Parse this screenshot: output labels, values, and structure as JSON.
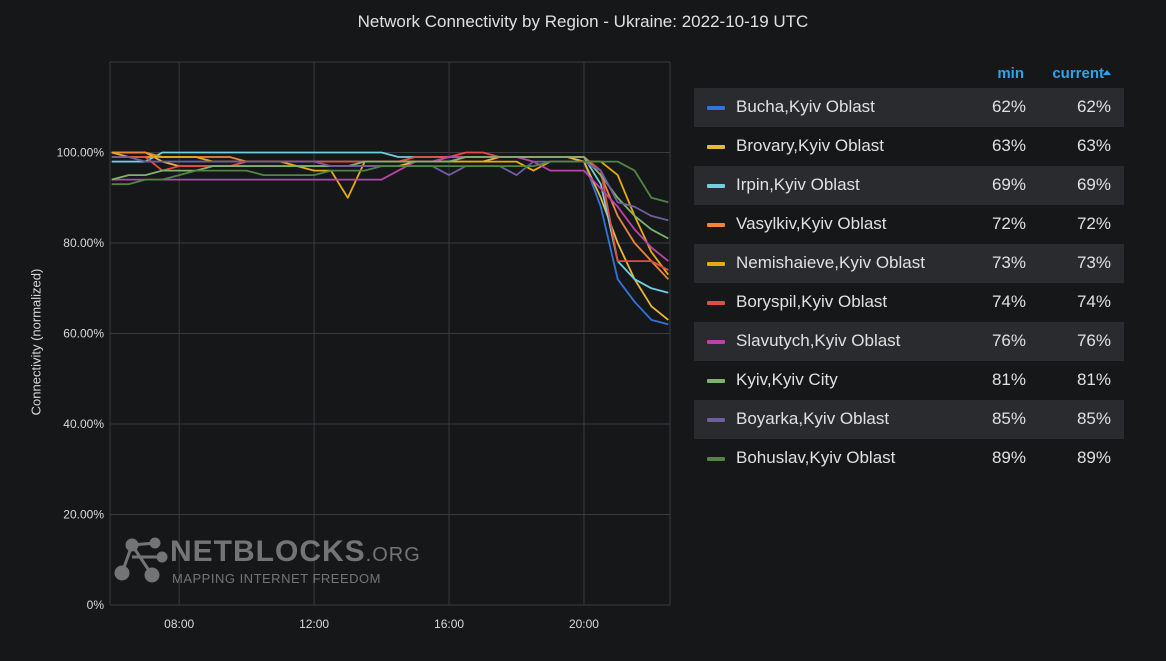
{
  "chart_data": {
    "type": "line",
    "title": "Network Connectivity by Region - Ukraine: 2022-10-19 UTC",
    "ylabel": "Connectivity (normalized)",
    "xlabel": "",
    "x": [
      "06:00",
      "06:30",
      "07:00",
      "07:30",
      "08:00",
      "08:30",
      "09:00",
      "09:30",
      "10:00",
      "10:30",
      "11:00",
      "11:30",
      "12:00",
      "12:30",
      "13:00",
      "13:30",
      "14:00",
      "14:30",
      "15:00",
      "15:30",
      "16:00",
      "16:30",
      "17:00",
      "17:30",
      "18:00",
      "18:30",
      "19:00",
      "19:30",
      "20:00",
      "20:30",
      "21:00",
      "21:30",
      "22:00",
      "22:30"
    ],
    "x_ticks": [
      "08:00",
      "12:00",
      "16:00",
      "20:00"
    ],
    "y_ticks": [
      "0%",
      "20.00%",
      "40.00%",
      "60.00%",
      "80.00%",
      "100.00%"
    ],
    "ylim": [
      0,
      120
    ],
    "grid": true,
    "legend_position": "right",
    "series": [
      {
        "name": "Bucha,Kyiv Oblast",
        "color": "#3274d9",
        "values": [
          98,
          98,
          98,
          98,
          98,
          98,
          98,
          98,
          98,
          98,
          98,
          98,
          98,
          98,
          98,
          98,
          98,
          98,
          98,
          98,
          98,
          99,
          99,
          99,
          99,
          99,
          99,
          99,
          98,
          88,
          72,
          67,
          63,
          62
        ]
      },
      {
        "name": "Brovary,Kyiv Oblast",
        "color": "#eab839",
        "values": [
          100,
          100,
          100,
          98,
          97,
          97,
          97,
          97,
          97,
          97,
          97,
          97,
          97,
          97,
          97,
          97,
          97,
          97,
          98,
          98,
          98,
          98,
          98,
          99,
          99,
          99,
          99,
          99,
          98,
          90,
          80,
          72,
          66,
          63
        ]
      },
      {
        "name": "Irpin,Kyiv Oblast",
        "color": "#6ed0e0",
        "values": [
          98,
          98,
          98,
          100,
          100,
          100,
          100,
          100,
          100,
          100,
          100,
          100,
          100,
          100,
          100,
          100,
          100,
          99,
          99,
          99,
          99,
          99,
          99,
          99,
          99,
          99,
          99,
          99,
          99,
          93,
          76,
          72,
          70,
          69
        ]
      },
      {
        "name": "Vasylkiv,Kyiv Oblast",
        "color": "#ef843c",
        "values": [
          100,
          100,
          100,
          99,
          99,
          99,
          99,
          99,
          98,
          98,
          98,
          98,
          98,
          98,
          98,
          98,
          98,
          98,
          98,
          98,
          99,
          99,
          99,
          99,
          99,
          99,
          99,
          99,
          99,
          95,
          86,
          80,
          76,
          72
        ]
      },
      {
        "name": "Nemishaieve,Kyiv Oblast",
        "color": "#e5ac0e",
        "values": [
          100,
          99,
          99,
          99,
          99,
          99,
          98,
          98,
          98,
          98,
          98,
          97,
          96,
          96,
          90,
          98,
          98,
          98,
          98,
          98,
          98,
          98,
          98,
          98,
          98,
          96,
          98,
          98,
          98,
          98,
          95,
          86,
          78,
          73
        ]
      },
      {
        "name": "Boryspil,Kyiv Oblast",
        "color": "#e24d42",
        "values": [
          99,
          99,
          99,
          96,
          97,
          97,
          97,
          97,
          98,
          98,
          98,
          98,
          98,
          98,
          98,
          98,
          98,
          98,
          99,
          99,
          99,
          100,
          100,
          99,
          99,
          99,
          99,
          99,
          99,
          96,
          76,
          76,
          76,
          74
        ]
      },
      {
        "name": "Slavutych,Kyiv Oblast",
        "color": "#ba43a9",
        "values": [
          94,
          94,
          94,
          94,
          94,
          94,
          94,
          94,
          94,
          94,
          94,
          94,
          94,
          94,
          94,
          94,
          94,
          96,
          98,
          98,
          99,
          99,
          99,
          99,
          99,
          98,
          96,
          96,
          96,
          92,
          88,
          83,
          79,
          76
        ]
      },
      {
        "name": "Kyiv,Kyiv City",
        "color": "#7eb26d",
        "values": [
          94,
          95,
          95,
          96,
          96,
          96,
          97,
          97,
          97,
          97,
          97,
          97,
          97,
          97,
          97,
          98,
          98,
          98,
          98,
          98,
          98,
          99,
          99,
          99,
          99,
          99,
          99,
          99,
          99,
          95,
          90,
          86,
          83,
          81
        ]
      },
      {
        "name": "Boyarka,Kyiv Oblast",
        "color": "#705da0",
        "values": [
          99,
          99,
          98,
          98,
          98,
          98,
          98,
          98,
          98,
          98,
          98,
          98,
          98,
          97,
          97,
          97,
          97,
          97,
          97,
          97,
          95,
          97,
          97,
          97,
          95,
          98,
          98,
          98,
          98,
          96,
          89,
          88,
          86,
          85
        ]
      },
      {
        "name": "Bohuslav,Kyiv Oblast",
        "color": "#508642",
        "values": [
          93,
          93,
          94,
          94,
          95,
          96,
          96,
          96,
          96,
          95,
          95,
          95,
          95,
          96,
          96,
          96,
          97,
          97,
          97,
          97,
          97,
          97,
          97,
          97,
          97,
          97,
          98,
          98,
          98,
          98,
          98,
          96,
          90,
          89
        ]
      }
    ]
  },
  "legend": {
    "header_min": "min",
    "header_current": "current",
    "sort_icon": "sort-ascending-icon",
    "items": [
      {
        "name": "Bucha,Kyiv Oblast",
        "min": "62%",
        "current": "62%"
      },
      {
        "name": "Brovary,Kyiv Oblast",
        "min": "63%",
        "current": "63%"
      },
      {
        "name": "Irpin,Kyiv Oblast",
        "min": "69%",
        "current": "69%"
      },
      {
        "name": "Vasylkiv,Kyiv Oblast",
        "min": "72%",
        "current": "72%"
      },
      {
        "name": "Nemishaieve,Kyiv Oblast",
        "min": "73%",
        "current": "73%"
      },
      {
        "name": "Boryspil,Kyiv Oblast",
        "min": "74%",
        "current": "74%"
      },
      {
        "name": "Slavutych,Kyiv Oblast",
        "min": "76%",
        "current": "76%"
      },
      {
        "name": "Kyiv,Kyiv City",
        "min": "81%",
        "current": "81%"
      },
      {
        "name": "Boyarka,Kyiv Oblast",
        "min": "85%",
        "current": "85%"
      },
      {
        "name": "Bohuslav,Kyiv Oblast",
        "min": "89%",
        "current": "89%"
      }
    ]
  },
  "watermark": {
    "name": "NETBLOCKS",
    "tld": ".ORG",
    "tagline": "MAPPING INTERNET FREEDOM",
    "icon": "network-nodes-logo-icon"
  }
}
